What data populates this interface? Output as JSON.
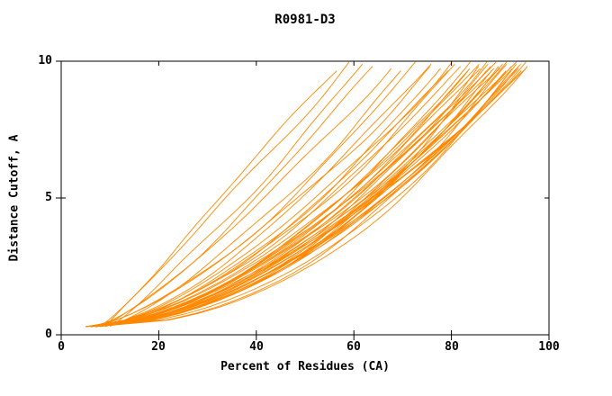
{
  "page": {
    "background": "#ffffff"
  },
  "chart_data": {
    "type": "line",
    "title": "R0981-D3",
    "xlabel": "Percent of Residues (CA)",
    "ylabel": "Distance Cutoff, A",
    "xlim": [
      0,
      100
    ],
    "ylim": [
      0,
      10
    ],
    "x_ticks": [
      0,
      20,
      40,
      60,
      80,
      100
    ],
    "y_ticks": [
      0,
      5,
      10
    ],
    "grid": false,
    "legend": "none",
    "line_color": "#ff8800",
    "axis_color": "#000000",
    "description": "Bundle of per-model cumulative accuracy curves: percent of CA residues (x) under a distance cutoff in Angstroms (y). All curves start near x=5 at y~0.3 and rise to the top of the plot; most reach y=10 between x=80 and x=95, a few outlier curves reach it as early as x=55.",
    "y_sample_start": 0.3,
    "y_sample_end": 9.8,
    "curve_format": [
      "x_start",
      "x_at_top",
      "shape_exponent"
    ],
    "curves": [
      [
        9,
        56,
        1.0
      ],
      [
        8,
        59,
        0.92
      ],
      [
        10,
        62,
        0.88
      ],
      [
        8,
        64,
        0.8
      ],
      [
        7,
        67,
        0.78
      ],
      [
        9,
        70,
        0.74
      ],
      [
        6,
        73,
        0.68
      ],
      [
        7,
        75,
        0.66
      ],
      [
        6,
        76,
        0.7
      ],
      [
        8,
        78,
        0.64
      ],
      [
        6,
        79,
        0.62
      ],
      [
        7,
        80,
        0.66
      ],
      [
        5,
        81,
        0.6
      ],
      [
        6,
        82,
        0.63
      ],
      [
        7,
        83,
        0.58
      ],
      [
        5,
        84,
        0.6
      ],
      [
        6,
        84,
        0.56
      ],
      [
        5,
        85,
        0.58
      ],
      [
        6,
        86,
        0.55
      ],
      [
        5,
        86,
        0.6
      ],
      [
        7,
        87,
        0.52
      ],
      [
        6,
        87,
        0.58
      ],
      [
        5,
        88,
        0.5
      ],
      [
        6,
        88,
        0.56
      ],
      [
        7,
        88,
        0.62
      ],
      [
        5,
        89,
        0.53
      ],
      [
        6,
        89,
        0.6
      ],
      [
        5,
        90,
        0.5
      ],
      [
        6,
        90,
        0.55
      ],
      [
        7,
        90,
        0.62
      ],
      [
        5,
        91,
        0.52
      ],
      [
        6,
        91,
        0.57
      ],
      [
        5,
        92,
        0.5
      ],
      [
        6,
        92,
        0.55
      ],
      [
        7,
        92,
        0.6
      ],
      [
        5,
        93,
        0.52
      ],
      [
        6,
        93,
        0.57
      ],
      [
        7,
        93,
        0.48
      ],
      [
        5,
        94,
        0.54
      ],
      [
        6,
        94,
        0.5
      ],
      [
        7,
        94,
        0.58
      ],
      [
        5,
        95,
        0.52
      ],
      [
        6,
        95,
        0.56
      ],
      [
        7,
        95,
        0.48
      ],
      [
        5,
        95,
        0.6
      ],
      [
        6,
        95,
        0.62
      ]
    ]
  }
}
